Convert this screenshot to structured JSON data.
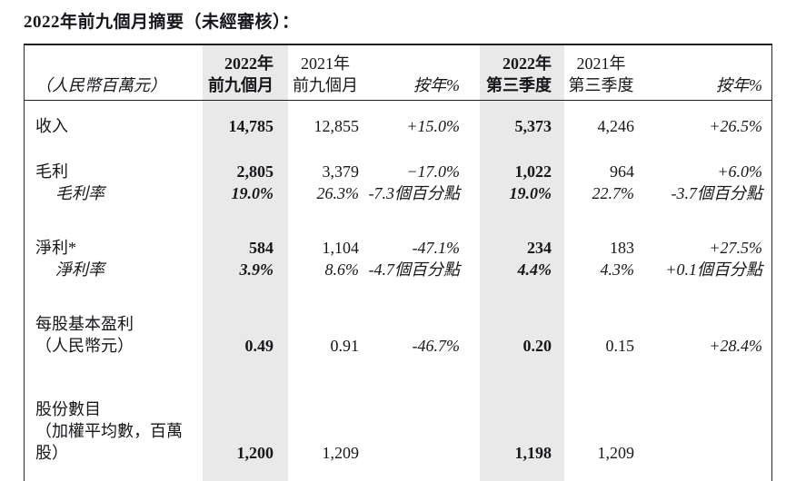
{
  "page": {
    "title": "2022年前九個月摘要（未經審核）："
  },
  "colors": {
    "highlight_column_bg": "#e9e9e9",
    "border": "#1f1f1f",
    "text": "#17171c"
  },
  "table": {
    "unit_label": "（人民幣百萬元）",
    "headers": {
      "col_2022_9m": {
        "line1": "2022年",
        "line2": "前九個月"
      },
      "col_2021_9m": {
        "line1": "2021年",
        "line2": "前九個月"
      },
      "col_yoy_9m": "按年%",
      "col_2022_q3": {
        "line1": "2022年",
        "line2": "第三季度"
      },
      "col_2021_q3": {
        "line1": "2021年",
        "line2": "第三季度"
      },
      "col_yoy_q3": "按年%"
    },
    "rows": [
      {
        "label": "收入",
        "y2022_9m": "14,785",
        "y2021_9m": "12,855",
        "yoy_9m": "+15.0%",
        "y2022_q3": "5,373",
        "y2021_q3": "4,246",
        "yoy_q3": "+26.5%"
      },
      {
        "label": "毛利",
        "y2022_9m": "2,805",
        "y2021_9m": "3,379",
        "yoy_9m": "−17.0%",
        "y2022_q3": "1,022",
        "y2021_q3": "964",
        "yoy_q3": "+6.0%"
      },
      {
        "label": "毛利率",
        "y2022_9m": "19.0%",
        "y2021_9m": "26.3%",
        "yoy_9m": "-7.3個百分點",
        "y2022_q3": "19.0%",
        "y2021_q3": "22.7%",
        "yoy_q3": "-3.7個百分點"
      },
      {
        "label": "淨利*",
        "y2022_9m": "584",
        "y2021_9m": "1,104",
        "yoy_9m": "-47.1%",
        "y2022_q3": "234",
        "y2021_q3": "183",
        "yoy_q3": "+27.5%"
      },
      {
        "label": "淨利率",
        "y2022_9m": "3.9%",
        "y2021_9m": "8.6%",
        "yoy_9m": "-4.7個百分點",
        "y2022_q3": "4.4%",
        "y2021_q3": "4.3%",
        "yoy_q3": "+0.1個百分點"
      },
      {
        "label_line1": "每股基本盈利",
        "label_line2": "（人民幣元）",
        "y2022_9m": "0.49",
        "y2021_9m": "0.91",
        "yoy_9m": "-46.7%",
        "y2022_q3": "0.20",
        "y2021_q3": "0.15",
        "yoy_q3": "+28.4%"
      },
      {
        "label_line1": "股份數目",
        "label_line2": "（加權平均數，百萬股）",
        "y2022_9m": "1,200",
        "y2021_9m": "1,209",
        "yoy_9m": "",
        "y2022_q3": "1,198",
        "y2021_q3": "1,209",
        "yoy_q3": ""
      }
    ]
  }
}
